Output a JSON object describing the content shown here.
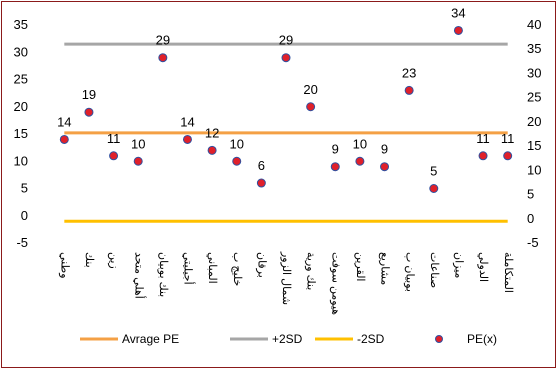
{
  "chart_data": {
    "type": "scatter",
    "title": "",
    "xlabel": "",
    "ylabel": "",
    "y_left": {
      "min": -5,
      "max": 35,
      "ticks": [
        -5,
        0,
        5,
        10,
        15,
        20,
        25,
        30,
        35
      ]
    },
    "y_right": {
      "min": -5,
      "max": 40,
      "ticks": [
        -5,
        0,
        5,
        10,
        15,
        20,
        25,
        30,
        35,
        40
      ]
    },
    "grid": false,
    "legend_position": "bottom",
    "categories": [
      "وطني",
      "بنك",
      "زين",
      "أهلي متحد",
      "بنك بوبيان",
      "أجيليتي",
      "المباني",
      "خليج ب",
      "برقان",
      "شمال الزور",
      "بنك ورية",
      "هيومن سوفت",
      "القرين",
      "مشاريع",
      "بوبيان ب",
      "صناعات",
      "ميزان",
      "الدولي",
      "المتكاملة"
    ],
    "series": [
      {
        "name": "PE(x)",
        "kind": "points",
        "color": "#e0202a",
        "edge": "#3050a0",
        "values": [
          14,
          19,
          11,
          10,
          29,
          14,
          12,
          10,
          6,
          29,
          20,
          9,
          10,
          9,
          23,
          5,
          34,
          11,
          11
        ]
      },
      {
        "name": "Avrage PE",
        "kind": "hline",
        "value": 15.2,
        "color": "#f4a045"
      },
      {
        "name": "+2SD",
        "kind": "hline",
        "value": 31.5,
        "color": "#a6a6a6"
      },
      {
        "name": "-2SD",
        "kind": "hline",
        "value": -1.0,
        "color": "#ffc000"
      }
    ]
  }
}
